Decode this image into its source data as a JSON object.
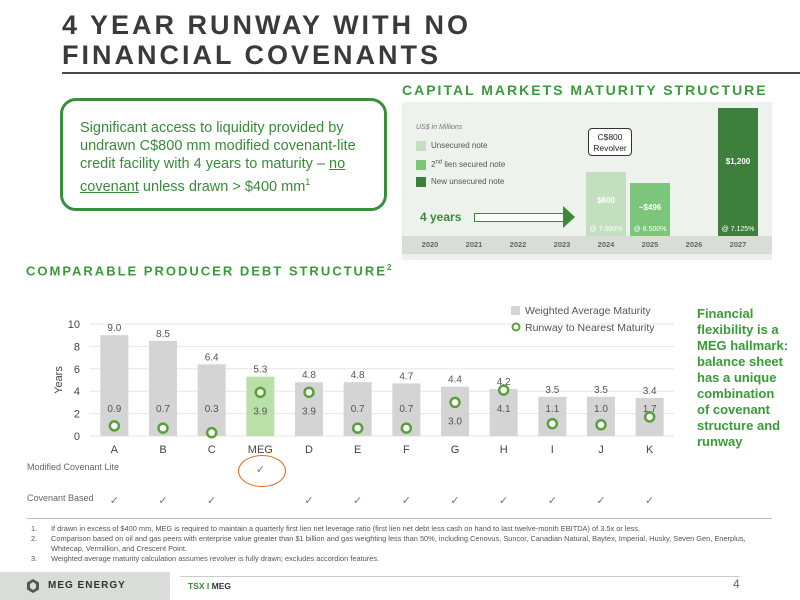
{
  "title": {
    "line1": "4 YEAR RUNWAY WITH NO",
    "line2": "FINANCIAL COVENANTS"
  },
  "callout": {
    "text_before": "Significant access to liquidity provided by undrawn C$800 mm modified covenant-lite credit facility with 4 years to maturity – ",
    "underlined": "no covenant",
    "text_after": " unless drawn > $400 mm",
    "sup": "1"
  },
  "capital_markets": {
    "heading": "CAPITAL MARKETS MATURITY STRUCTURE",
    "units": "US$ in Millions",
    "legend": [
      {
        "label": "Unsecured note",
        "color": "#c3dfbf"
      },
      {
        "label": "2nd lien secured note",
        "sup": "nd",
        "color": "#7bc67b"
      },
      {
        "label": "New unsecured note",
        "color": "#3e7f3e"
      }
    ],
    "revolver_line1": "C$800",
    "revolver_line2": "Revolver",
    "runway_label": "4 years",
    "years": [
      "2020",
      "2021",
      "2022",
      "2023",
      "2024",
      "2025",
      "2026",
      "2027"
    ],
    "bars": [
      {
        "year": "2024",
        "value": 600,
        "label": "$600",
        "rate": "@ 7.000%",
        "color": "#c3dfbf"
      },
      {
        "year": "2025",
        "value": 496,
        "label": "~$496",
        "rate": "@ 6.500%",
        "color": "#7bc67b"
      },
      {
        "year": "2027",
        "value": 1200,
        "label": "$1,200",
        "rate": "@ 7.125%",
        "color": "#3e7f3e"
      }
    ]
  },
  "comparable": {
    "heading": "COMPARABLE PRODUCER DEBT STRUCTURE",
    "sup": "2",
    "row_modified": "Modified Covenant Lite",
    "row_covenant": "Covenant Based",
    "check_glyph": "✓"
  },
  "chart_data": {
    "type": "bar",
    "categories": [
      "A",
      "B",
      "C",
      "MEG",
      "D",
      "E",
      "F",
      "G",
      "H",
      "I",
      "J",
      "K"
    ],
    "series": [
      {
        "name": "Weighted Average Maturity",
        "values": [
          9.0,
          8.5,
          6.4,
          5.3,
          4.8,
          4.8,
          4.7,
          4.4,
          4.2,
          3.5,
          3.5,
          3.4
        ]
      },
      {
        "name": "Runway to Nearest Maturity",
        "values": [
          0.9,
          0.7,
          0.3,
          3.9,
          3.9,
          0.7,
          0.7,
          3.0,
          4.1,
          1.1,
          1.0,
          1.7
        ]
      }
    ],
    "ylabel": "Years",
    "ylim": [
      0,
      10
    ],
    "yticks": [
      0,
      2,
      4,
      6,
      8,
      10
    ],
    "bar_color": "#d4d4d4",
    "highlight_category": "MEG",
    "highlight_color": "#b8e0a8",
    "marker_color": "#5aa03a",
    "legend_position": "top-right",
    "modified_covenant_lite": [
      "MEG"
    ],
    "covenant_based": [
      "A",
      "B",
      "C",
      "D",
      "E",
      "F",
      "G",
      "H",
      "I",
      "J",
      "K"
    ]
  },
  "side_text": "Financial flexibility is a MEG hallmark: balance sheet has a unique combination of covenant structure and runway",
  "footnotes": [
    {
      "num": "1.",
      "text": "If drawn in excess of $400 mm, MEG is required to maintain a quarterly first lien net leverage ratio (first lien net debt less cash on hand to last twelve-month EBITDA) of 3.5x or less."
    },
    {
      "num": "2.",
      "text": "Comparison based on oil and gas peers with enterprise value greater than $1 billion and gas weighting less than 50%, including Cenovus, Suncor, Canadian Natural, Baytex, Imperial, Husky, Seven Gen, Enerplus, Whitecap, Vermillion, and Crescent Point."
    },
    {
      "num": "3.",
      "text": "Weighted average maturity calculation assumes revolver is fully drawn; excludes accordion features."
    }
  ],
  "footer": {
    "logo": "MEG ENERGY",
    "exchange": "TSX",
    "sep": "I",
    "ticker": "MEG",
    "page": "4"
  }
}
